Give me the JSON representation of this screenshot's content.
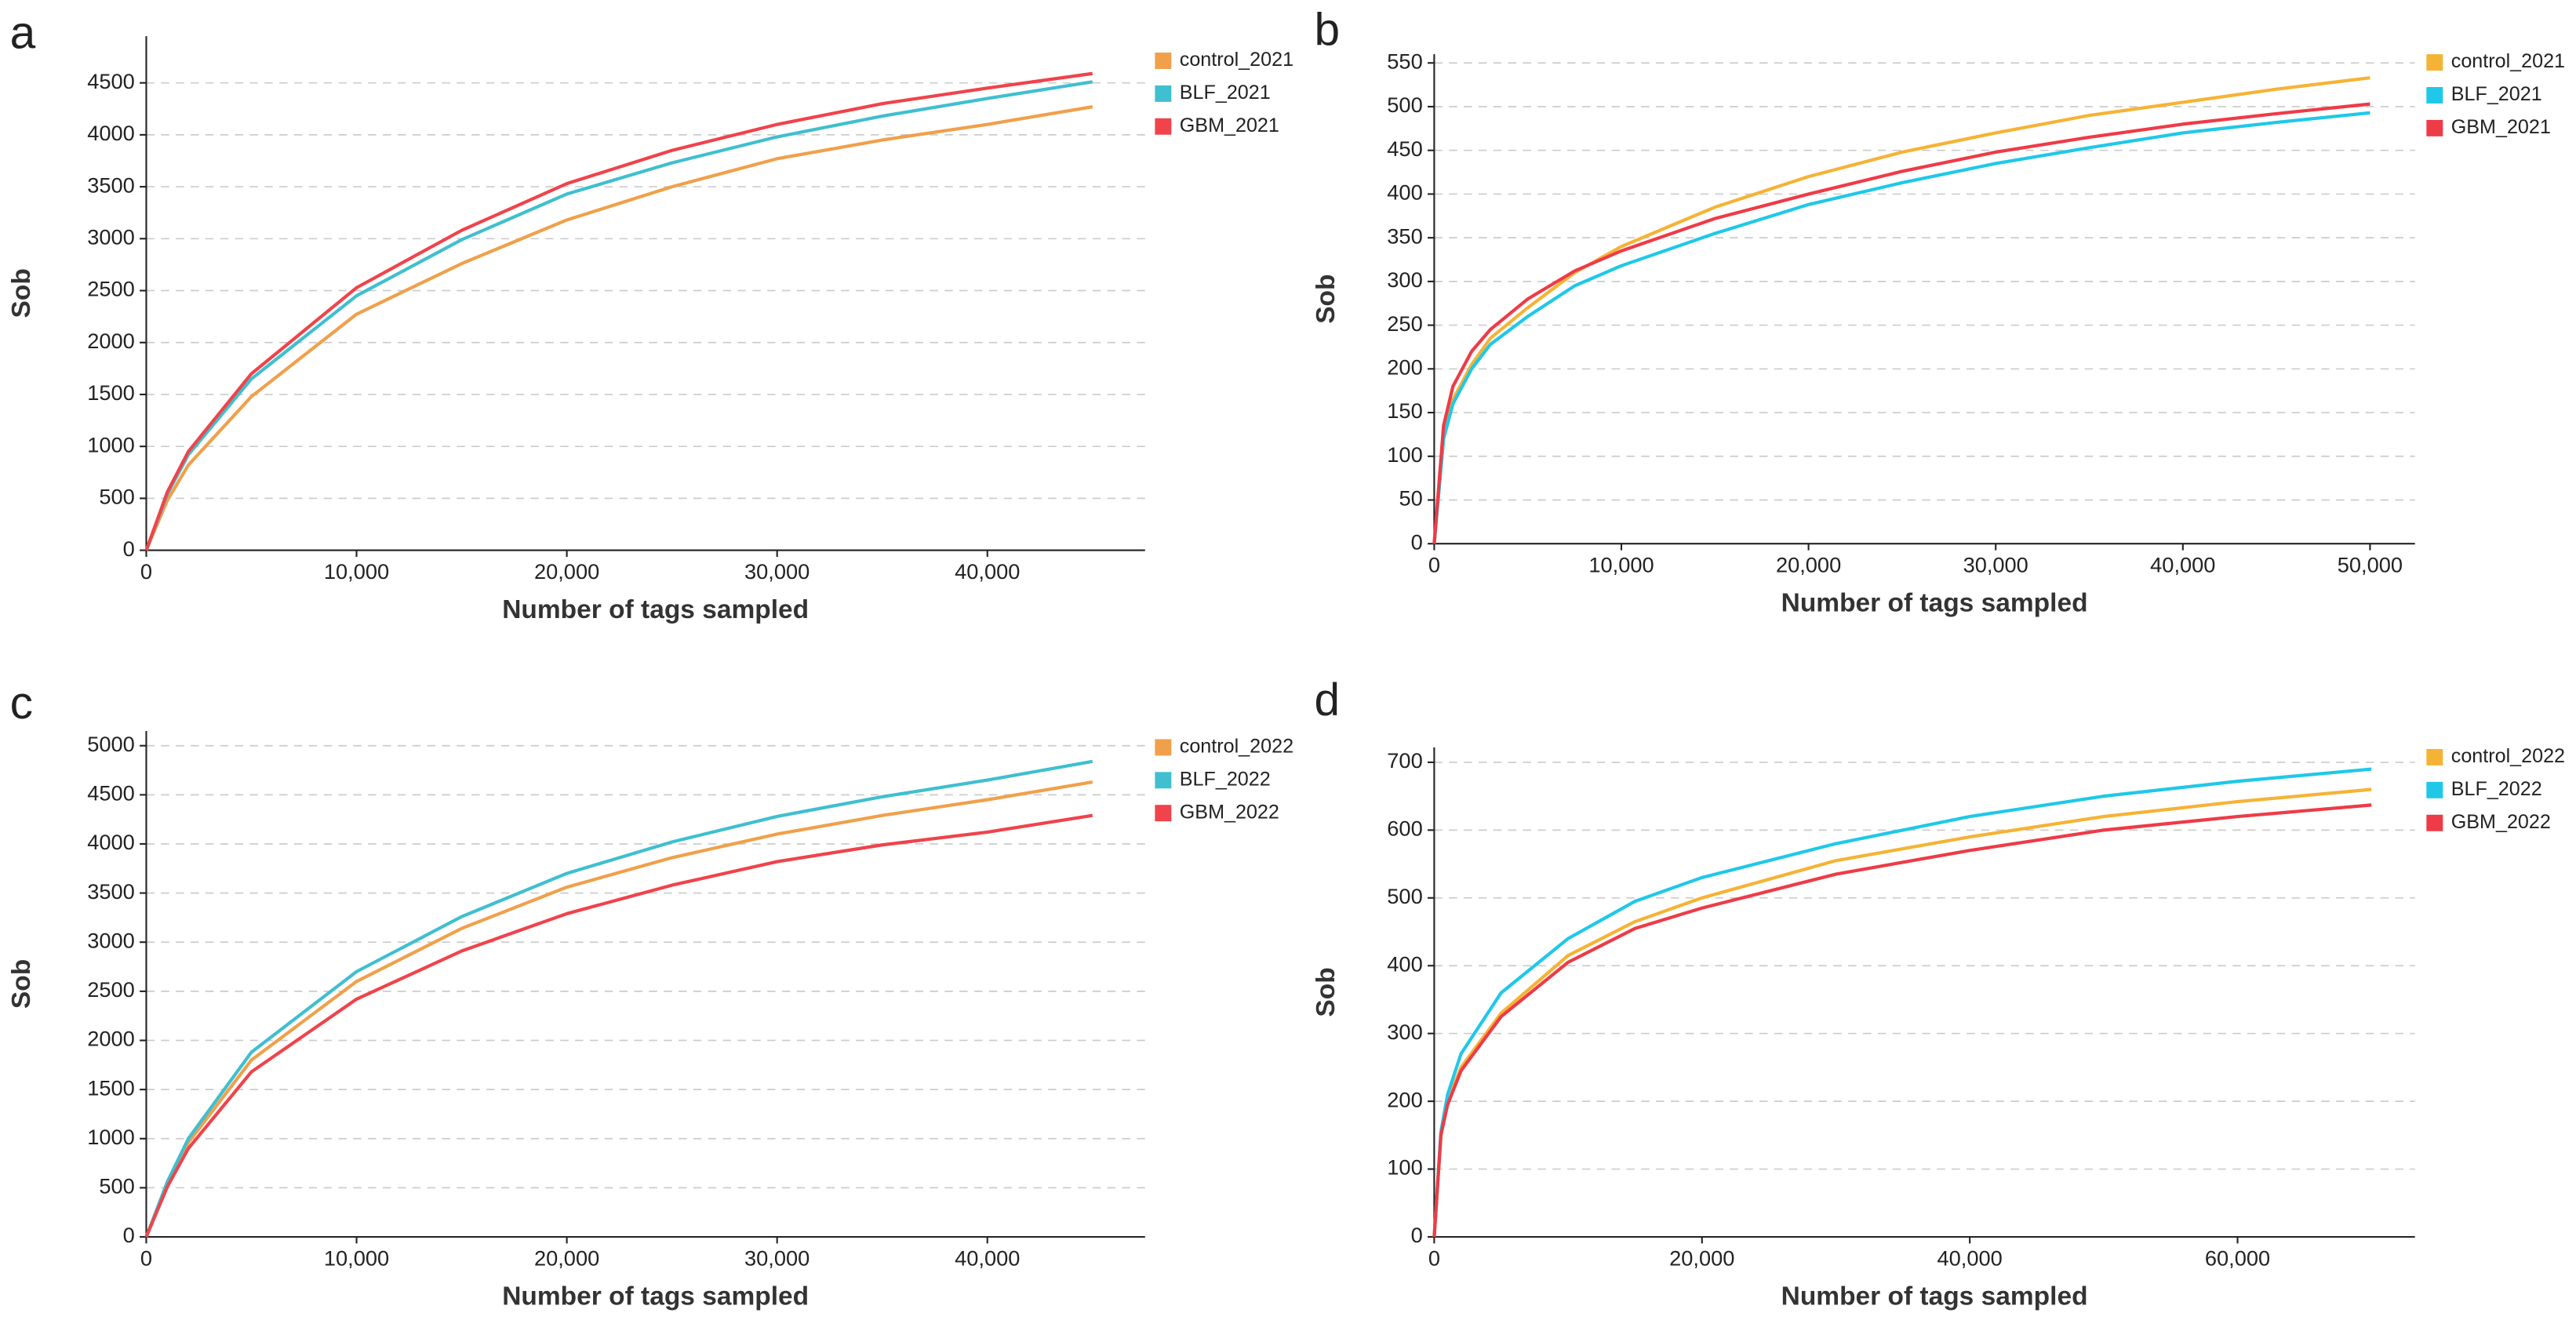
{
  "chart_data": [
    {
      "type": "line",
      "panel": "a",
      "xlabel": "Number of tags sampled",
      "ylabel": "Sob",
      "grid": true,
      "x": [
        0,
        1000,
        2000,
        5000,
        10000,
        15000,
        20000,
        25000,
        30000,
        35000,
        40000,
        45000
      ],
      "series": [
        {
          "name": "control_2021",
          "color": "#f0a04b",
          "values": [
            0,
            480,
            820,
            1480,
            2273,
            2760,
            3180,
            3500,
            3770,
            3950,
            4100,
            4270
          ]
        },
        {
          "name": "BLF_2021",
          "color": "#3fbfcf",
          "values": [
            0,
            540,
            920,
            1650,
            2450,
            2990,
            3430,
            3730,
            3980,
            4180,
            4350,
            4510
          ]
        },
        {
          "name": "GBM_2021",
          "color": "#f0434b",
          "values": [
            0,
            560,
            950,
            1700,
            2528,
            3080,
            3530,
            3850,
            4100,
            4300,
            4450,
            4590
          ]
        }
      ],
      "xlim": [
        0,
        47500
      ],
      "ylim": [
        0,
        4950
      ],
      "xticks": [
        0,
        {
          "value": 10000,
          "label": "10,000"
        },
        {
          "value": 20000,
          "label": "20,000"
        },
        {
          "value": 30000,
          "label": "30,000"
        },
        {
          "value": 40000,
          "label": "40,000"
        }
      ],
      "yticks": [
        0,
        500,
        1000,
        1500,
        2000,
        2500,
        3000,
        3500,
        4000,
        4500
      ]
    },
    {
      "type": "line",
      "panel": "b",
      "xlabel": "Number of tags sampled",
      "ylabel": "Sob",
      "grid": true,
      "x": [
        0,
        500,
        1000,
        2000,
        3000,
        5000,
        7500,
        10000,
        15000,
        20000,
        25000,
        30000,
        35000,
        40000,
        45000,
        50000
      ],
      "series": [
        {
          "name": "control_2021",
          "color": "#f5b335",
          "values": [
            0,
            120,
            165,
            205,
            235,
            270,
            310,
            340,
            385,
            420,
            448,
            470,
            490,
            505,
            520,
            533
          ]
        },
        {
          "name": "BLF_2021",
          "color": "#1fc8e8",
          "values": [
            0,
            120,
            160,
            200,
            228,
            260,
            295,
            318,
            355,
            388,
            413,
            435,
            453,
            470,
            482,
            493
          ]
        },
        {
          "name": "GBM_2021",
          "color": "#ee3b47",
          "values": [
            0,
            135,
            180,
            220,
            245,
            280,
            312,
            335,
            372,
            400,
            426,
            448,
            465,
            480,
            492,
            503
          ]
        }
      ],
      "xlim": [
        0,
        52400
      ],
      "ylim": [
        0,
        560
      ],
      "xticks": [
        0,
        {
          "value": 10000,
          "label": "10,000"
        },
        {
          "value": 20000,
          "label": "20,000"
        },
        {
          "value": 30000,
          "label": "30,000"
        },
        {
          "value": 40000,
          "label": "40,000"
        },
        {
          "value": 50000,
          "label": "50,000"
        }
      ],
      "yticks": [
        0,
        50,
        100,
        150,
        200,
        250,
        300,
        350,
        400,
        450,
        500,
        550
      ]
    },
    {
      "type": "line",
      "panel": "c",
      "xlabel": "Number of tags sampled",
      "ylabel": "Sob",
      "grid": true,
      "x": [
        0,
        1000,
        2000,
        5000,
        10000,
        15000,
        20000,
        25000,
        30000,
        35000,
        40000,
        45000
      ],
      "series": [
        {
          "name": "control_2022",
          "color": "#f0a04b",
          "values": [
            0,
            540,
            960,
            1800,
            2600,
            3140,
            3560,
            3860,
            4100,
            4290,
            4450,
            4630
          ]
        },
        {
          "name": "BLF_2022",
          "color": "#3fbfcf",
          "values": [
            0,
            560,
            1000,
            1880,
            2700,
            3260,
            3700,
            4020,
            4280,
            4480,
            4650,
            4840
          ]
        },
        {
          "name": "GBM_2022",
          "color": "#f0434b",
          "values": [
            0,
            510,
            900,
            1680,
            2420,
            2910,
            3290,
            3580,
            3820,
            3990,
            4120,
            4290
          ]
        }
      ],
      "xlim": [
        0,
        47500
      ],
      "ylim": [
        0,
        5150
      ],
      "xticks": [
        0,
        {
          "value": 10000,
          "label": "10,000"
        },
        {
          "value": 20000,
          "label": "20,000"
        },
        {
          "value": 30000,
          "label": "30,000"
        },
        {
          "value": 40000,
          "label": "40,000"
        }
      ],
      "yticks": [
        0,
        500,
        1000,
        1500,
        2000,
        2500,
        3000,
        3500,
        4000,
        4500,
        5000
      ]
    },
    {
      "type": "line",
      "panel": "d",
      "xlabel": "Number of tags sampled",
      "ylabel": "Sob",
      "grid": true,
      "x": [
        0,
        500,
        1000,
        2000,
        5000,
        10000,
        15000,
        20000,
        30000,
        40000,
        50000,
        60000,
        70000
      ],
      "series": [
        {
          "name": "control_2022",
          "color": "#f5b335",
          "values": [
            0,
            150,
            200,
            250,
            330,
            415,
            465,
            500,
            555,
            590,
            620,
            642,
            660
          ]
        },
        {
          "name": "BLF_2022",
          "color": "#1fc8e8",
          "values": [
            0,
            155,
            210,
            270,
            360,
            440,
            495,
            530,
            580,
            620,
            650,
            672,
            690
          ]
        },
        {
          "name": "GBM_2022",
          "color": "#ee3b47",
          "values": [
            0,
            150,
            195,
            245,
            325,
            405,
            455,
            485,
            535,
            570,
            600,
            620,
            637
          ]
        }
      ],
      "xlim": [
        0,
        73250
      ],
      "ylim": [
        0,
        722
      ],
      "xticks": [
        0,
        {
          "value": 20000,
          "label": "20,000"
        },
        {
          "value": 40000,
          "label": "40,000"
        },
        {
          "value": 60000,
          "label": "60,000"
        }
      ],
      "yticks": [
        0,
        100,
        200,
        300,
        400,
        500,
        600,
        700
      ]
    }
  ]
}
